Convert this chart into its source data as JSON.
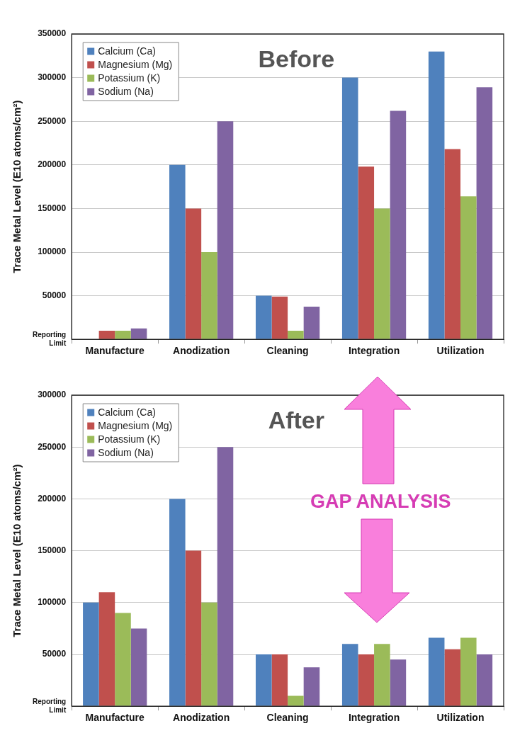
{
  "chart_data": [
    {
      "type": "bar",
      "title": "Before",
      "ylabel": "Trace Metal Level (E10 atoms/cm²)",
      "categories": [
        "Manufacture",
        "Anodization",
        "Cleaning",
        "Integration",
        "Utilization"
      ],
      "series": [
        {
          "name": "Calcium (Ca)",
          "color": "#4f81bd",
          "values": [
            null,
            200000,
            50000,
            300000,
            330000
          ]
        },
        {
          "name": "Magnesium (Mg)",
          "color": "#c0504d",
          "values": [
            10000,
            150000,
            49000,
            198000,
            218000
          ]
        },
        {
          "name": "Potassium (K)",
          "color": "#9bbb59",
          "values": [
            10000,
            100000,
            10000,
            150000,
            164000
          ]
        },
        {
          "name": "Sodium (Na)",
          "color": "#8064a2",
          "values": [
            12500,
            250000,
            37500,
            262000,
            289000
          ]
        }
      ],
      "ylim": [
        0,
        350000
      ],
      "yticks": [
        {
          "value": 0,
          "label": "Reporting Limit"
        },
        50000,
        100000,
        150000,
        200000,
        250000,
        300000,
        350000
      ],
      "grid": "y",
      "legend": "top left"
    },
    {
      "type": "bar",
      "title": "After",
      "ylabel": "Trace Metal Level (E10 atoms/cm²)",
      "categories": [
        "Manufacture",
        "Anodization",
        "Cleaning",
        "Integration",
        "Utilization"
      ],
      "series": [
        {
          "name": "Calcium (Ca)",
          "color": "#4f81bd",
          "values": [
            100000,
            200000,
            50000,
            60000,
            66000
          ]
        },
        {
          "name": "Magnesium (Mg)",
          "color": "#c0504d",
          "values": [
            110000,
            150000,
            50000,
            50000,
            55000
          ]
        },
        {
          "name": "Potassium (K)",
          "color": "#9bbb59",
          "values": [
            90000,
            100000,
            10000,
            60000,
            66000
          ]
        },
        {
          "name": "Sodium (Na)",
          "color": "#8064a2",
          "values": [
            75000,
            250000,
            37500,
            45000,
            50000
          ]
        }
      ],
      "ylim": [
        0,
        300000
      ],
      "yticks": [
        {
          "value": 0,
          "label": "Reporting Limit"
        },
        50000,
        100000,
        150000,
        200000,
        250000,
        300000
      ],
      "grid": "y",
      "legend": "top left",
      "annotations": [
        "GAP ANALYSIS"
      ]
    }
  ]
}
